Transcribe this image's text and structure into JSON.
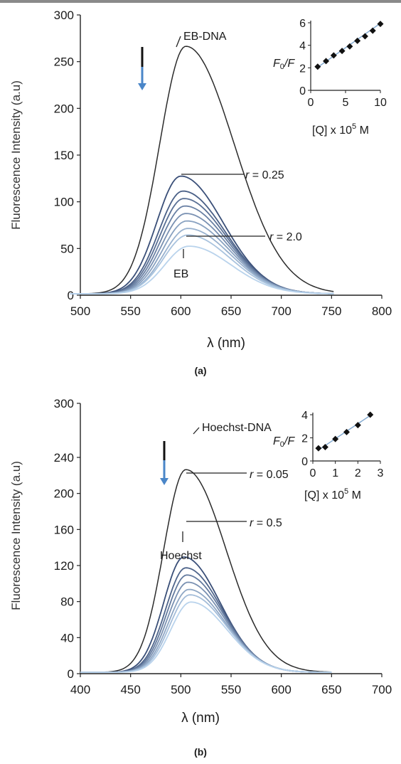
{
  "colors": {
    "free_dye_curve": "#2b2b2b",
    "darkest_series": "#3a4f78",
    "lightest_series": "#b9d3ec",
    "arrow_blue": "#4a86c8",
    "inset_line": "#7fa7cf"
  },
  "chart_data": [
    {
      "type": "line",
      "caption": "(a)",
      "ylabel": "Fluorescence Intensity (a.u)",
      "xlabel": "λ (nm)",
      "xlim": [
        500,
        800
      ],
      "ylim": [
        0,
        300
      ],
      "xticks": [
        "500",
        "550",
        "600",
        "650",
        "700",
        "750",
        "800"
      ],
      "yticks": [
        "0",
        "50",
        "100",
        "150",
        "200",
        "250",
        "300"
      ],
      "grid": false,
      "x_range_of_curves": [
        490,
        752
      ],
      "annotations": {
        "complex": "EB-DNA",
        "r_first_prefix": "r",
        "r_first_value": " = 0.25",
        "r_last_prefix": "r",
        "r_last_value": " = 2.0",
        "free": "EB"
      },
      "series": [
        {
          "name": "EB-DNA",
          "peak_x": 605,
          "peak_y": 265,
          "width_left": 26,
          "width_right": 48
        },
        {
          "peak_x": 600,
          "peak_y": 126,
          "width_left": 24,
          "width_right": 42
        },
        {
          "peak_x": 602,
          "peak_y": 110,
          "width_left": 24,
          "width_right": 42
        },
        {
          "peak_x": 603,
          "peak_y": 102,
          "width_left": 24,
          "width_right": 42
        },
        {
          "peak_x": 604,
          "peak_y": 94,
          "width_left": 24,
          "width_right": 42
        },
        {
          "peak_x": 605,
          "peak_y": 86,
          "width_left": 24,
          "width_right": 42
        },
        {
          "peak_x": 606,
          "peak_y": 78,
          "width_left": 24,
          "width_right": 42
        },
        {
          "peak_x": 607,
          "peak_y": 70,
          "width_left": 24,
          "width_right": 42
        },
        {
          "peak_x": 607,
          "peak_y": 63,
          "width_left": 24,
          "width_right": 42
        },
        {
          "name": "EB",
          "peak_x": 608,
          "peak_y": 51,
          "width_left": 24,
          "width_right": 42
        }
      ],
      "inset": {
        "xlabel_main": "[Q] x 10",
        "xlabel_exp": "5",
        "xlabel_unit": " M",
        "ylabel_main": "F",
        "ylabel_sub": "0",
        "ylabel_tail": "/F",
        "xlim": [
          0,
          10
        ],
        "ylim": [
          0,
          6
        ],
        "xticks": [
          "0",
          "5",
          "10"
        ],
        "yticks": [
          "0",
          "2",
          "4",
          "6"
        ],
        "points": [
          [
            1,
            2.1
          ],
          [
            2.2,
            2.6
          ],
          [
            3.3,
            3.1
          ],
          [
            4.5,
            3.5
          ],
          [
            5.6,
            3.9
          ],
          [
            6.7,
            4.4
          ],
          [
            7.8,
            4.8
          ],
          [
            8.9,
            5.3
          ],
          [
            10,
            5.9
          ]
        ],
        "fit": [
          [
            1,
            2.05
          ],
          [
            10,
            5.95
          ]
        ]
      }
    },
    {
      "type": "line",
      "caption": "(b)",
      "ylabel": "Fluorescence Intensity (a.u)",
      "xlabel": "λ (nm)",
      "xlim": [
        400,
        700
      ],
      "ylim": [
        0,
        300
      ],
      "xticks": [
        "400",
        "450",
        "500",
        "550",
        "600",
        "650",
        "700"
      ],
      "yticks": [
        "0",
        "40",
        "80",
        "120",
        "160",
        "200",
        "240",
        "300"
      ],
      "ytick_values": [
        0,
        40,
        80,
        120,
        160,
        200,
        240,
        300
      ],
      "grid": false,
      "x_range_of_curves": [
        400,
        650
      ],
      "annotations": {
        "complex": "Hoechst-DNA",
        "r_first_prefix": "r",
        "r_first_value": " = 0.05",
        "r_last_prefix": "r",
        "r_last_value": " = 0.5",
        "free": "Hoechst"
      },
      "series": [
        {
          "name": "Hoechst-DNA",
          "peak_x": 505,
          "peak_y": 225,
          "width_left": 22,
          "width_right": 40
        },
        {
          "peak_x": 503,
          "peak_y": 128,
          "width_left": 20,
          "width_right": 36
        },
        {
          "peak_x": 505,
          "peak_y": 116,
          "width_left": 20,
          "width_right": 36
        },
        {
          "peak_x": 506,
          "peak_y": 108,
          "width_left": 20,
          "width_right": 36
        },
        {
          "peak_x": 507,
          "peak_y": 100,
          "width_left": 20,
          "width_right": 36
        },
        {
          "peak_x": 508,
          "peak_y": 92,
          "width_left": 20,
          "width_right": 36
        },
        {
          "peak_x": 509,
          "peak_y": 86,
          "width_left": 20,
          "width_right": 36
        },
        {
          "name": "Hoechst",
          "peak_x": 510,
          "peak_y": 78,
          "width_left": 20,
          "width_right": 36
        }
      ],
      "inset": {
        "xlabel_main": "[Q] x 10",
        "xlabel_exp": "5",
        "xlabel_unit": " M",
        "ylabel_main": "F",
        "ylabel_sub": "0",
        "ylabel_tail": "/F",
        "xlim": [
          0,
          3
        ],
        "ylim": [
          0,
          4
        ],
        "xticks": [
          "0",
          "1",
          "2",
          "3"
        ],
        "yticks": [
          "0",
          "2",
          "4"
        ],
        "points": [
          [
            0.25,
            1.1
          ],
          [
            0.55,
            1.2
          ],
          [
            1.0,
            1.9
          ],
          [
            1.5,
            2.5
          ],
          [
            2.0,
            3.1
          ],
          [
            2.55,
            4.0
          ]
        ],
        "fit": [
          [
            0.25,
            0.95
          ],
          [
            2.6,
            4.0
          ]
        ]
      }
    }
  ]
}
